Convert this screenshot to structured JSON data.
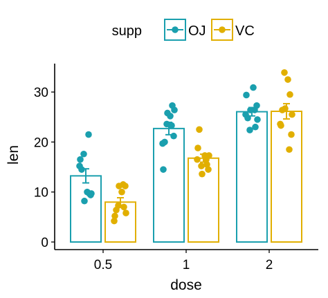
{
  "chart_data": {
    "type": "bar",
    "xlabel": "dose",
    "ylabel": "len",
    "categories": [
      "0.5",
      "1",
      "2"
    ],
    "ylim": [
      0,
      35
    ],
    "yticks": [
      0,
      10,
      20,
      30
    ],
    "grid": false,
    "legend": {
      "title": "supp",
      "position": "top"
    },
    "series": [
      {
        "name": "OJ",
        "color": "#1A9FAE",
        "values": [
          13.23,
          22.7,
          26.06
        ],
        "se": [
          1.41,
          1.24,
          0.84
        ],
        "points": [
          [
            15.2,
            21.5,
            17.6,
            9.7,
            14.5,
            10.0,
            8.2,
            9.4,
            16.5,
            9.7
          ],
          [
            19.7,
            23.3,
            23.6,
            26.4,
            20.0,
            25.2,
            25.8,
            21.2,
            14.5,
            27.3
          ],
          [
            25.5,
            26.4,
            22.4,
            24.5,
            24.8,
            30.9,
            26.4,
            27.3,
            29.4,
            23.0
          ]
        ]
      },
      {
        "name": "VC",
        "color": "#E1AF00",
        "values": [
          7.98,
          16.77,
          26.14
        ],
        "se": [
          0.87,
          0.8,
          1.53
        ],
        "points": [
          [
            4.2,
            11.5,
            7.3,
            5.8,
            6.4,
            10.0,
            11.2,
            11.2,
            5.2,
            7.0
          ],
          [
            16.5,
            16.5,
            15.2,
            17.3,
            22.5,
            17.3,
            13.6,
            14.5,
            18.8,
            15.5
          ],
          [
            23.6,
            18.5,
            33.9,
            25.5,
            26.4,
            32.5,
            26.7,
            21.5,
            23.3,
            29.5
          ]
        ]
      }
    ]
  }
}
